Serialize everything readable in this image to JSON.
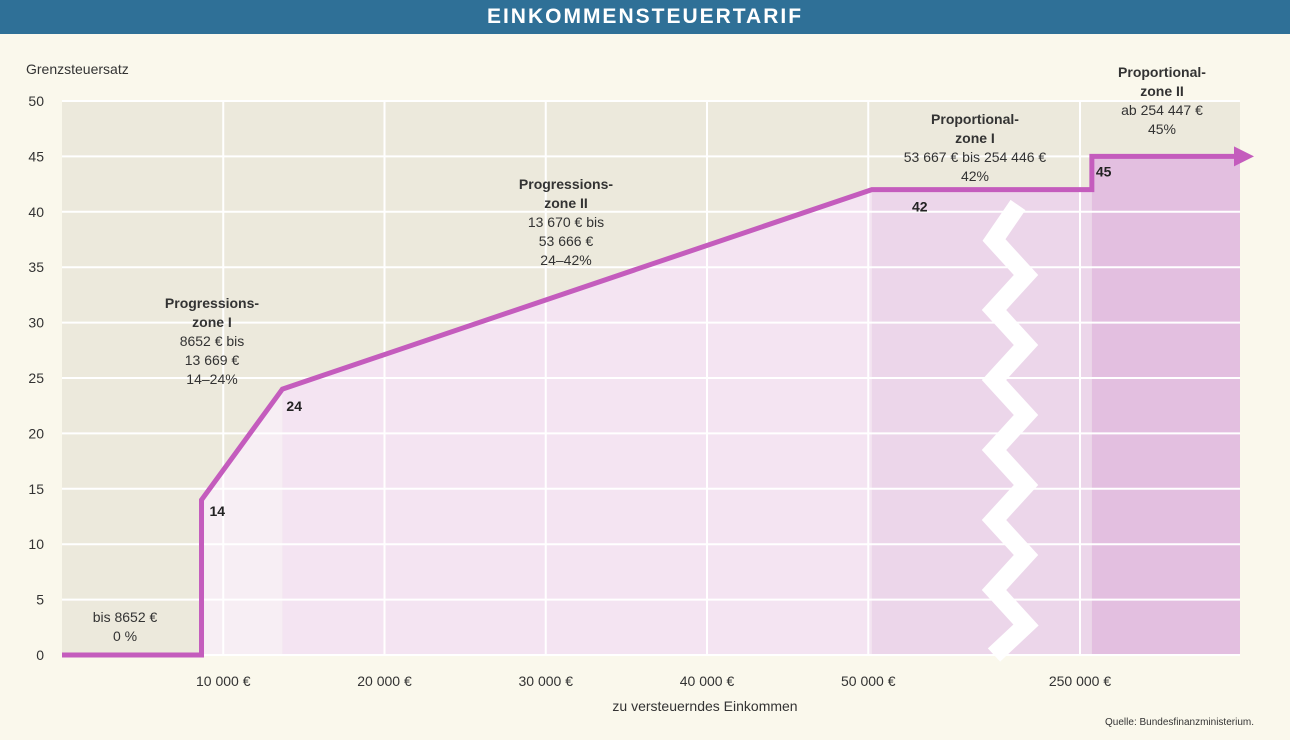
{
  "header": {
    "title": "EINKOMMENSTEUERTARIF"
  },
  "source": "Quelle: Bundesfinanzministerium.",
  "colors": {
    "title_bar": "#2f7097",
    "line": "#c45cbd",
    "fill_light": "#f4e4f2",
    "fill_mid": "#ecd6ea",
    "fill_dark": "#e3bfe0",
    "plot_bg": "#ece9dc",
    "page_bg": "#faf8ec"
  },
  "chart_data": {
    "type": "line",
    "ylabel": "Grenzsteuersatz",
    "xlabel": "zu versteuerndes Einkommen",
    "ylim": [
      0,
      50
    ],
    "y_ticks": [
      "0",
      "5",
      "10",
      "15",
      "20",
      "25",
      "30",
      "35",
      "40",
      "45",
      "50"
    ],
    "x_ticks": [
      {
        "label": "10 000 €",
        "value": 10000
      },
      {
        "label": "20 000 €",
        "value": 20000
      },
      {
        "label": "30 000 €",
        "value": 30000
      },
      {
        "label": "40 000 €",
        "value": 40000
      },
      {
        "label": "50 000 €",
        "value": 50000
      },
      {
        "label": "250 000 €",
        "value": 250000
      }
    ],
    "axis_break": "between 50 000 € and 250 000 €",
    "grid": true,
    "series": [
      {
        "points": [
          {
            "x": 0,
            "y": 0
          },
          {
            "x": 8652,
            "y": 0
          },
          {
            "x": 8652,
            "y": 14
          },
          {
            "x": 13669,
            "y": 24
          },
          {
            "x": 53666,
            "y": 42
          },
          {
            "x": 254446,
            "y": 42
          },
          {
            "x": 254447,
            "y": 45
          }
        ]
      }
    ],
    "point_labels": [
      "14",
      "24",
      "42",
      "45"
    ],
    "zones": [
      {
        "lines": [
          "bis 8652 €",
          "0 %"
        ]
      },
      {
        "title": [
          "Progressions-",
          "zone I"
        ],
        "lines": [
          "8652 € bis",
          "13 669 €",
          "14–24%"
        ]
      },
      {
        "title": [
          "Progressions-",
          "zone II"
        ],
        "lines": [
          "13 670 € bis",
          "53 666 €",
          "24–42%"
        ]
      },
      {
        "title": [
          "Proportional-",
          "zone I"
        ],
        "lines": [
          "53 667 € bis 254 446 €",
          "42%"
        ]
      },
      {
        "title": [
          "Proportional-",
          "zone II"
        ],
        "lines": [
          "ab 254 447 €",
          "45%"
        ]
      }
    ]
  }
}
